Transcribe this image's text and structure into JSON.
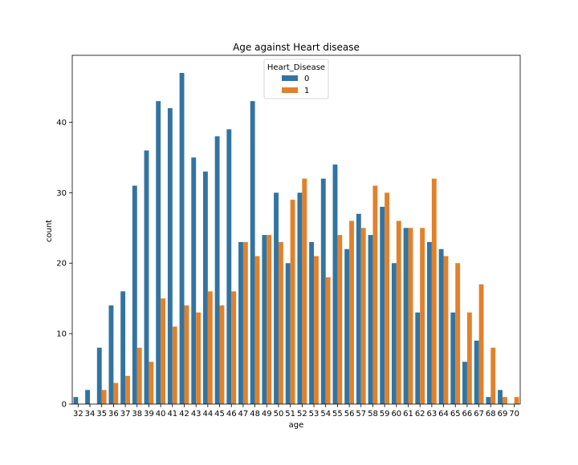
{
  "chart_data": {
    "type": "bar",
    "title": "Age against Heart disease",
    "xlabel": "age",
    "ylabel": "count",
    "ylim": [
      0,
      49.5
    ],
    "yticks": [
      0,
      10,
      20,
      30,
      40
    ],
    "grid": false,
    "legend": {
      "title": "Heart_Disease",
      "placement": "top-center"
    },
    "categories": [
      "32",
      "34",
      "35",
      "36",
      "37",
      "38",
      "39",
      "40",
      "41",
      "42",
      "43",
      "44",
      "45",
      "46",
      "47",
      "48",
      "49",
      "50",
      "51",
      "52",
      "53",
      "54",
      "55",
      "56",
      "57",
      "58",
      "59",
      "60",
      "61",
      "62",
      "63",
      "64",
      "65",
      "66",
      "67",
      "68",
      "69",
      "70"
    ],
    "series": [
      {
        "name": "0",
        "color": "#3274a1",
        "values": [
          1,
          2,
          8,
          14,
          16,
          31,
          36,
          43,
          42,
          47,
          35,
          33,
          38,
          39,
          23,
          43,
          24,
          30,
          20,
          30,
          23,
          32,
          34,
          22,
          27,
          24,
          28,
          20,
          25,
          13,
          23,
          22,
          13,
          6,
          9,
          1,
          2,
          0
        ]
      },
      {
        "name": "1",
        "color": "#e1812c",
        "values": [
          0,
          0,
          2,
          3,
          4,
          8,
          6,
          15,
          11,
          14,
          13,
          16,
          14,
          16,
          23,
          21,
          24,
          23,
          29,
          32,
          21,
          18,
          24,
          26,
          25,
          31,
          30,
          26,
          25,
          25,
          32,
          21,
          20,
          13,
          17,
          8,
          1,
          1
        ]
      }
    ]
  }
}
